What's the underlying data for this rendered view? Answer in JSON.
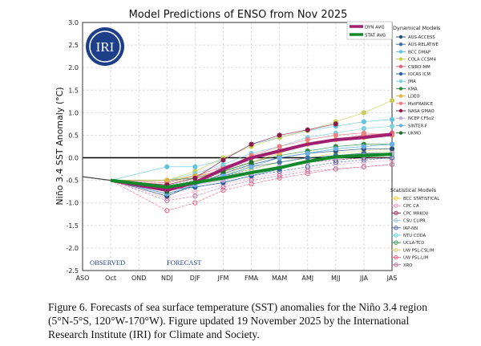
{
  "chart_data": {
    "type": "line",
    "title": "Model Predictions of ENSO from Nov 2025",
    "ylabel": "Niño 3.4 SST Anomaly (°C)",
    "xlabel": "",
    "categories": [
      "ASO",
      "Oct",
      "OND",
      "NDJ",
      "DJF",
      "JFM",
      "FMA",
      "MAM",
      "AMJ",
      "MJJ",
      "JJA",
      "JAS"
    ],
    "ylim": [
      -2.5,
      3.0
    ],
    "yticks": [
      "-2.5",
      "-2.0",
      "-1.5",
      "-1.0",
      "-0.5",
      "0.0",
      "0.5",
      "1.0",
      "1.5",
      "2.0",
      "2.5",
      "3.0"
    ],
    "grid": true,
    "annotations": {
      "observed": "OBSERVED",
      "forecast": "FORECAST"
    },
    "logo_text": "IRI",
    "observed": {
      "categories": [
        "ASO",
        "Oct"
      ],
      "values": [
        -0.42,
        -0.5
      ]
    },
    "averages": [
      {
        "name": "DYN AVG",
        "color": "#a0206e",
        "values": [
          -0.72,
          -0.55,
          -0.25,
          0.0,
          0.15,
          0.3,
          0.4,
          0.45,
          0.52
        ]
      },
      {
        "name": "STAT AVG",
        "color": "#138a2a",
        "values": [
          -0.65,
          -0.55,
          -0.45,
          -0.33,
          -0.22,
          -0.08,
          0.02,
          0.05,
          0.08
        ]
      }
    ],
    "dynamical_title": "Dynamical Models",
    "dynamical": [
      {
        "name": "AUS-ACCESS",
        "color": "#2b4f7a",
        "values": [
          -0.85,
          -0.6,
          -0.35,
          -0.15,
          0,
          0.1,
          0.15,
          0.2,
          0.2
        ]
      },
      {
        "name": "AUS-RELATIVE",
        "color": "#3f6fa8",
        "values": [
          -0.8,
          -0.6,
          -0.4,
          -0.2,
          -0.1,
          0,
          0.05,
          0.1,
          0.1
        ]
      },
      {
        "name": "BCC DMAP",
        "color": "#62c2e0",
        "values": [
          -0.2,
          -0.2,
          -0.05,
          0.3,
          0.45,
          0.6,
          0.7,
          0.8,
          0.85
        ]
      },
      {
        "name": "COLA CCSM4",
        "color": "#c8cf55",
        "values": [
          -0.5,
          -0.3,
          0,
          0.25,
          0.45,
          0.6,
          0.8,
          1.0,
          1.27
        ]
      },
      {
        "name": "CSIRO-MM",
        "color": "#e0637a",
        "values": [
          -0.55,
          -0.4,
          -0.2,
          0,
          0.15,
          0.3,
          0.4,
          0.5,
          0.55
        ]
      },
      {
        "name": "IOCAS ICM",
        "color": "#2a5fa0",
        "values": [
          -0.7,
          -0.65,
          -0.55,
          -0.4,
          -0.25,
          -0.1,
          0,
          0.05,
          0.1
        ]
      },
      {
        "name": "JMA",
        "color": "#7fd0e0",
        "values": [
          -0.5,
          -0.35,
          -0.15,
          0.1,
          0.25,
          0.45,
          0.55,
          0.65,
          0.7
        ]
      },
      {
        "name": "KMA",
        "color": "#2e8b3e",
        "values": [
          -0.5,
          -0.45,
          -0.3,
          -0.1,
          0.05,
          0.15,
          0.25,
          0.3,
          0.3
        ]
      },
      {
        "name": "LDEO",
        "color": "#e8b040",
        "values": [
          -0.5,
          -0.4,
          -0.3,
          -0.1,
          0.1,
          0.3,
          0.4,
          0.45,
          0.5
        ]
      },
      {
        "name": "MetFRANCE",
        "color": "#f08080",
        "values": [
          -0.6,
          -0.45,
          -0.25,
          0.05,
          0.25,
          0.4,
          0.5,
          0.55,
          0.5
        ]
      },
      {
        "name": "NASA GMAO",
        "color": "#8b1a4a",
        "values": [
          -0.6,
          -0.45,
          -0.05,
          0.3,
          0.5,
          0.62,
          0.75,
          null,
          null
        ]
      },
      {
        "name": "NCEP CFSv2",
        "color": "#c0a8d8",
        "values": [
          -0.7,
          -0.6,
          -0.5,
          -0.35,
          -0.2,
          -0.1,
          0,
          0.05,
          0.1
        ]
      },
      {
        "name": "SINTEX-F",
        "color": "#6ab0e8",
        "values": [
          -0.8,
          -0.6,
          -0.4,
          -0.2,
          0,
          0.1,
          0.2,
          0.25,
          0.3
        ]
      },
      {
        "name": "UKMO",
        "color": "#1e6e2e",
        "values": [
          -0.75,
          -0.55,
          -0.3,
          -0.1,
          null,
          null,
          null,
          null,
          null
        ]
      }
    ],
    "statistical_title": "Statistical Models",
    "statistical": [
      {
        "name": "BCC STATISTICAL",
        "color": "#e8d040",
        "values": [
          -0.5,
          -0.4,
          -0.3,
          -0.2,
          -0.1,
          0,
          0.1,
          0.15,
          0.2
        ]
      },
      {
        "name": "CPC CA",
        "color": "#f0a0c0",
        "values": [
          -0.9,
          -0.75,
          -0.6,
          -0.45,
          -0.35,
          -0.25,
          -0.15,
          -0.1,
          -0.05
        ]
      },
      {
        "name": "CPC MRKOV",
        "color": "#a03060",
        "values": [
          -0.65,
          -0.5,
          -0.4,
          -0.3,
          -0.2,
          -0.1,
          -0.05,
          0,
          0
        ]
      },
      {
        "name": "CSU CLIPR",
        "color": "#a0c8e8",
        "values": [
          -0.6,
          -0.5,
          -0.4,
          -0.3,
          -0.2,
          -0.1,
          0,
          0.05,
          0.05
        ]
      },
      {
        "name": "IAP-NN",
        "color": "#5070b0",
        "values": [
          -0.8,
          -0.65,
          -0.55,
          -0.4,
          -0.3,
          -0.2,
          -0.1,
          -0.05,
          0
        ]
      },
      {
        "name": "NTU CODA",
        "color": "#60d0e0",
        "values": [
          -0.55,
          -0.4,
          -0.3,
          -0.15,
          0,
          0.1,
          0.2,
          0.25,
          0.3
        ]
      },
      {
        "name": "UCLA-TCD",
        "color": "#40a060",
        "values": [
          -0.7,
          -0.55,
          -0.4,
          -0.25,
          -0.1,
          0,
          0.05,
          0.1,
          0.1
        ]
      },
      {
        "name": "UW PSL-CSLIM",
        "color": "#d8d070",
        "values": [
          -0.55,
          -0.45,
          -0.35,
          -0.25,
          -0.1,
          0,
          0.05,
          0.1,
          0.15
        ]
      },
      {
        "name": "UW PSL-LIM",
        "color": "#f06080",
        "values": [
          -1.17,
          -1.0,
          -0.72,
          -0.58,
          -0.45,
          -0.35,
          -0.25,
          -0.2,
          -0.15
        ]
      },
      {
        "name": "XRO",
        "color": "#c070a0",
        "values": [
          -0.95,
          -0.85,
          -0.65,
          -0.5,
          -0.4,
          -0.3,
          -0.25,
          -0.2,
          -0.15
        ]
      }
    ]
  },
  "caption": "Figure 6. Forecasts of sea surface temperature (SST) anomalies for the Niño 3.4 region (5°N-5°S, 120°W-170°W). Figure updated 19 November 2025 by the International Research Institute (IRI) for Climate and Society."
}
